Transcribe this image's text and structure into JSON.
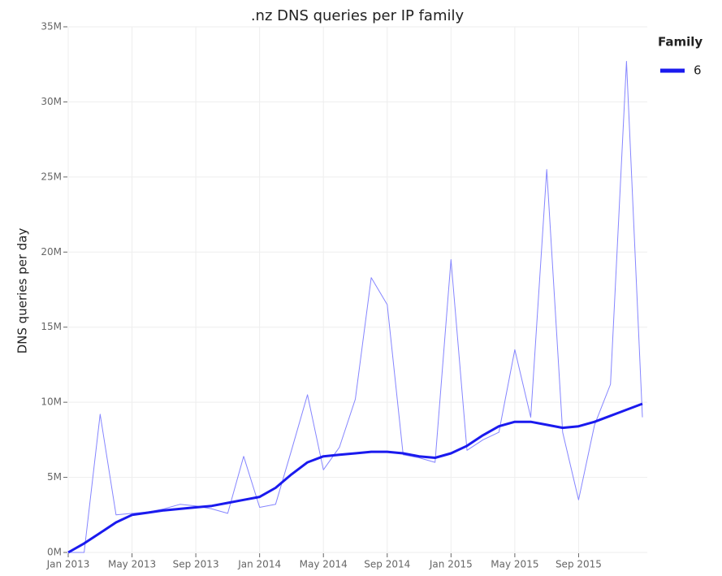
{
  "chart_data": {
    "type": "line",
    "title": ".nz DNS queries per IP family",
    "y_label": "DNS queries per day",
    "legend_title": "Family",
    "legend_position": "top-right",
    "grid": true,
    "x": [
      "2013-01",
      "2013-02",
      "2013-03",
      "2013-04",
      "2013-05",
      "2013-06",
      "2013-07",
      "2013-08",
      "2013-09",
      "2013-10",
      "2013-11",
      "2013-12",
      "2014-01",
      "2014-02",
      "2014-03",
      "2014-04",
      "2014-05",
      "2014-06",
      "2014-07",
      "2014-08",
      "2014-09",
      "2014-10",
      "2014-11",
      "2014-12",
      "2015-01",
      "2015-02",
      "2015-03",
      "2015-04",
      "2015-05",
      "2015-06",
      "2015-07",
      "2015-08",
      "2015-09",
      "2015-10",
      "2015-11",
      "2015-12",
      "2016-01"
    ],
    "xlim": [
      "2013-01",
      "2016-01"
    ],
    "xticks": [
      {
        "value": "2013-01",
        "label": "Jan 2013"
      },
      {
        "value": "2013-05",
        "label": "May 2013"
      },
      {
        "value": "2013-09",
        "label": "Sep 2013"
      },
      {
        "value": "2014-01",
        "label": "Jan 2014"
      },
      {
        "value": "2014-05",
        "label": "May 2014"
      },
      {
        "value": "2014-09",
        "label": "Sep 2014"
      },
      {
        "value": "2015-01",
        "label": "Jan 2015"
      },
      {
        "value": "2015-05",
        "label": "May 2015"
      },
      {
        "value": "2015-09",
        "label": "Sep 2015"
      }
    ],
    "ylim": [
      0,
      35000000
    ],
    "yticks": [
      {
        "value": 0,
        "label": "0M"
      },
      {
        "value": 5000000,
        "label": "5M"
      },
      {
        "value": 10000000,
        "label": "10M"
      },
      {
        "value": 15000000,
        "label": "15M"
      },
      {
        "value": 20000000,
        "label": "20M"
      },
      {
        "value": 25000000,
        "label": "25M"
      },
      {
        "value": 30000000,
        "label": "30M"
      },
      {
        "value": 35000000,
        "label": "35M"
      }
    ],
    "series": [
      {
        "color": "#8585ff",
        "width": 1,
        "values": [
          0,
          0,
          9200000,
          2500000,
          2600000,
          2700000,
          2900000,
          3200000,
          3100000,
          2900000,
          2600000,
          6400000,
          3000000,
          3200000,
          6800000,
          10500000,
          5500000,
          7000000,
          10200000,
          18300000,
          16500000,
          6500000,
          6300000,
          6000000,
          19500000,
          6800000,
          7500000,
          8000000,
          13500000,
          9000000,
          25500000,
          8000000,
          3500000,
          8500000,
          11200000,
          32700000,
          9000000
        ]
      },
      {
        "name": "6",
        "color": "#1a1aee",
        "width": 3,
        "values": [
          0,
          600000,
          1300000,
          2000000,
          2500000,
          2650000,
          2800000,
          2900000,
          3000000,
          3100000,
          3300000,
          3500000,
          3700000,
          4300000,
          5200000,
          6000000,
          6400000,
          6500000,
          6600000,
          6700000,
          6700000,
          6600000,
          6400000,
          6300000,
          6600000,
          7100000,
          7800000,
          8400000,
          8700000,
          8700000,
          8500000,
          8300000,
          8400000,
          8700000,
          9100000,
          9500000,
          9900000
        ]
      }
    ]
  }
}
